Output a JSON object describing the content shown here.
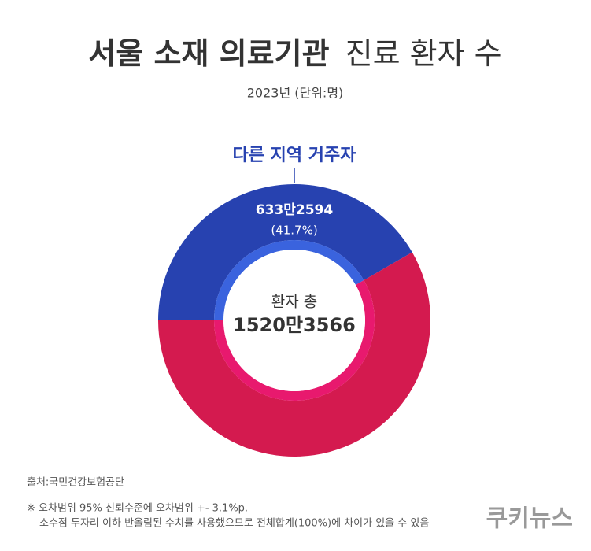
{
  "chart_data": {
    "type": "donut",
    "title": [
      "서울 소재 의료기관",
      "진료 환자 수"
    ],
    "subtitle": "2023년 (단위:명)",
    "categories": [
      "다른 지역 거주자",
      null
    ],
    "values": [
      6332594,
      8870972
    ],
    "value_labels": [
      "633만2594",
      null
    ],
    "percentages": [
      41.7,
      null
    ],
    "percentage_labels": [
      "(41.7%)",
      null
    ],
    "colors": [
      "#2742b0",
      "#d41a4f"
    ],
    "inner_colors": [
      "#3a63de",
      "#e8196e"
    ],
    "total": {
      "label": "환자 총",
      "value": 15203566,
      "value_label": "1520만3566"
    },
    "source": "출처:국민건강보험공단",
    "notes": [
      "※ 오차범위 95% 신뢰수준에 오차범위 +- 3.1%p.",
      "소수점 두자리 이하 반올림된 수치를 사용했으므로 전체합계(100%)에 차이가 있을 수 있음"
    ],
    "logo": "쿠키뉴스"
  }
}
